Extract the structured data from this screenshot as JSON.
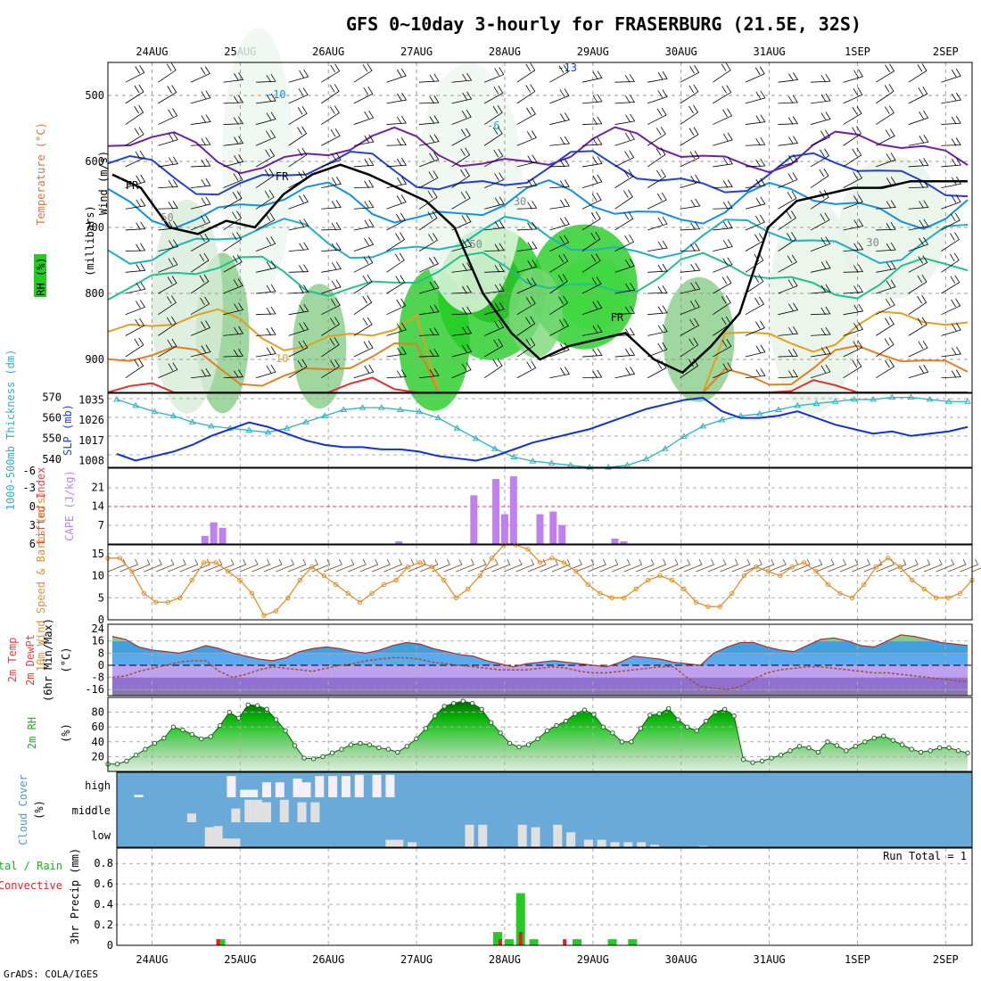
{
  "title": "GFS 0~10day 3-hourly for FRASERBURG (21.5E, 32S)",
  "credit": "GrADS: COLA/IGES",
  "colors": {
    "temp_line": "#2040c0",
    "rh_green": "#22cc22",
    "cape": "#c080f0",
    "lifted": "#e04040",
    "wind10": "#e09030",
    "barb": "#704020",
    "slp": "#1030d0",
    "thickness": "#30b0c0",
    "cloud_bg": "#6aaad8",
    "cloud_fill": "#e0e0e0",
    "precip_total": "#22cc22",
    "precip_conv": "#e02020"
  },
  "chart_data": [
    {
      "type": "contour",
      "name": "upper-air",
      "ylabel_parts": [
        "RH (%)",
        "Temperature (°C)",
        "Wind (m/s)"
      ],
      "yaxis_label": "(millibars)",
      "yticks": [
        "500",
        "600",
        "700",
        "800",
        "900"
      ],
      "ylim": [
        450,
        950
      ],
      "date_labels": [
        "24AUG",
        "25AUG",
        "26AUG",
        "27AUG",
        "28AUG",
        "29AUG",
        "30AUG",
        "31AUG",
        "1SEP",
        "2SEP"
      ],
      "contour_labels": [
        "-13",
        "-10",
        "-6",
        "FR",
        "FR",
        "FR",
        "50",
        "50",
        "30",
        "10",
        "30"
      ],
      "freezing_level_mb": [
        620,
        640,
        700,
        710,
        690,
        700,
        650,
        620,
        605,
        620,
        640,
        660,
        700,
        800,
        860,
        900,
        880,
        870,
        860,
        900,
        920,
        880,
        830,
        700,
        660,
        650,
        640,
        640,
        630,
        630,
        630
      ]
    },
    {
      "type": "line",
      "name": "thickness-slp",
      "ylabel_left": "1000-500mb Thickness (dm)",
      "ylabel_right": "SLP (mb)",
      "left_ticks": [
        "570",
        "560",
        "550",
        "540"
      ],
      "right_ticks": [
        "1035",
        "1026",
        "1017",
        "1008"
      ],
      "thickness_range": [
        536,
        572
      ],
      "slp_range": [
        1005,
        1038
      ],
      "thickness_dm": [
        569,
        566,
        563,
        561,
        558,
        556,
        555,
        554,
        553,
        555,
        558,
        561,
        564,
        565,
        565,
        564,
        563,
        560,
        555,
        550,
        545,
        541,
        539,
        538,
        537,
        536,
        536,
        537,
        540,
        545,
        551,
        556,
        559,
        561,
        562,
        564,
        566,
        567,
        568,
        569,
        569,
        570,
        570,
        569,
        568,
        568
      ],
      "slp_mb": [
        1011,
        1008,
        1010,
        1012,
        1015,
        1019,
        1022,
        1025,
        1023,
        1020,
        1017,
        1015,
        1014,
        1014,
        1013,
        1013,
        1012,
        1010,
        1009,
        1008,
        1010,
        1013,
        1016,
        1018,
        1020,
        1022,
        1025,
        1028,
        1031,
        1033,
        1035,
        1036,
        1030,
        1027,
        1027,
        1028,
        1030,
        1027,
        1024,
        1022,
        1020,
        1021,
        1019,
        1020,
        1021,
        1023
      ]
    },
    {
      "type": "bar",
      "name": "cape-li",
      "ylabel_left": "Lifted Index",
      "ylabel_right": "CAPE (J/kg)",
      "li_ticks": [
        "-6",
        "-3",
        "0",
        "3",
        "6"
      ],
      "cape_ticks": [
        "21",
        "14",
        "7"
      ],
      "cape_max": 28,
      "cape_bars": [
        [
          24.6,
          3
        ],
        [
          24.7,
          8
        ],
        [
          24.8,
          6
        ],
        [
          26.8,
          1
        ],
        [
          27.65,
          18
        ],
        [
          27.9,
          24
        ],
        [
          28.0,
          11
        ],
        [
          28.1,
          25
        ],
        [
          28.4,
          11
        ],
        [
          28.55,
          12
        ],
        [
          28.65,
          7
        ],
        [
          29.25,
          2
        ],
        [
          29.35,
          1
        ]
      ]
    },
    {
      "type": "line",
      "name": "wind10",
      "ylabel": "10m Wind Speed & Barbs (m/s)",
      "yticks": [
        "15",
        "10",
        "5",
        "0"
      ],
      "ylim": [
        0,
        17
      ],
      "speed_ms": [
        14,
        14,
        11,
        6,
        4,
        4,
        5,
        9,
        13,
        13,
        11,
        9,
        6,
        1,
        2,
        5,
        9,
        12,
        10,
        8,
        6,
        4,
        6,
        8,
        9,
        12,
        13,
        12,
        9,
        5,
        7,
        10,
        14,
        17,
        17,
        16,
        13,
        14,
        13,
        11,
        8,
        6,
        5,
        5,
        7,
        9,
        10,
        9,
        7,
        4,
        3,
        3,
        6,
        10,
        12,
        11,
        10,
        12,
        13,
        11,
        8,
        6,
        5,
        8,
        12,
        14,
        12,
        9,
        7,
        5,
        5,
        6,
        9
      ]
    },
    {
      "type": "area",
      "name": "temp-dew",
      "ylabel": "2m Temp 2m DewPt (6hr Min/Max) (°C)",
      "yticks": [
        "24",
        "16",
        "8",
        "0",
        "-8",
        "-16"
      ],
      "ylim": [
        -20,
        27
      ],
      "temp_c": [
        19,
        17,
        12,
        10,
        9,
        8,
        10,
        13,
        11,
        8,
        6,
        4,
        3,
        5,
        9,
        11,
        12,
        11,
        9,
        8,
        10,
        13,
        15,
        14,
        11,
        9,
        7,
        6,
        3,
        1,
        -1,
        1,
        2,
        3,
        2,
        1,
        0,
        -1,
        2,
        6,
        5,
        4,
        2,
        1,
        0,
        8,
        12,
        15,
        15,
        12,
        10,
        9,
        13,
        17,
        18,
        16,
        13,
        12,
        16,
        20,
        19,
        17,
        15,
        14,
        13
      ],
      "dew_c": [
        -8,
        -7,
        -4,
        -2,
        0,
        2,
        3,
        3,
        -4,
        -8,
        -6,
        -3,
        -1,
        -2,
        -3,
        -4,
        -2,
        0,
        1,
        3,
        4,
        5,
        5,
        4,
        2,
        1,
        0,
        -1,
        -2,
        -3,
        -3,
        -3,
        -2,
        -1,
        -2,
        -4,
        -5,
        -5,
        -4,
        -3,
        -2,
        -1,
        -1,
        -8,
        -14,
        -15,
        -16,
        -14,
        -9,
        -5,
        -3,
        -2,
        -1,
        -1,
        -2,
        -3,
        -4,
        -5,
        -5,
        -6,
        -7,
        -8,
        -9,
        -10,
        -11
      ]
    },
    {
      "type": "area",
      "name": "rh2m",
      "ylabel": "2m RH (%)",
      "yticks": [
        "80",
        "60",
        "40",
        "20"
      ],
      "ylim": [
        0,
        100
      ],
      "rh_pct": [
        10,
        10,
        14,
        22,
        30,
        38,
        45,
        60,
        56,
        50,
        44,
        47,
        62,
        80,
        72,
        90,
        89,
        84,
        70,
        55,
        35,
        18,
        17,
        20,
        25,
        30,
        36,
        38,
        36,
        32,
        30,
        26,
        34,
        44,
        58,
        75,
        88,
        92,
        95,
        92,
        84,
        66,
        52,
        38,
        33,
        36,
        44,
        55,
        62,
        68,
        78,
        83,
        77,
        60,
        52,
        40,
        40,
        58,
        76,
        78,
        85,
        70,
        60,
        55,
        68,
        80,
        84,
        75,
        16,
        12,
        14,
        18,
        22,
        28,
        34,
        32,
        26,
        40,
        35,
        28,
        34,
        40,
        45,
        48,
        42,
        36,
        30,
        26,
        28,
        32,
        32,
        28,
        25
      ]
    },
    {
      "type": "bar",
      "name": "cloud",
      "ylabel": "Cloud Cover (%)",
      "levels": [
        "high",
        "middle",
        "low"
      ],
      "high_bars": [
        [
          23.85,
          0.1
        ],
        [
          24.9,
          0.85
        ],
        [
          25.05,
          0.3
        ],
        [
          25.15,
          0.3
        ],
        [
          25.3,
          0.6
        ],
        [
          25.45,
          0.6
        ],
        [
          25.65,
          0.75
        ],
        [
          25.75,
          0.6
        ],
        [
          25.9,
          0.85
        ],
        [
          26.05,
          0.85
        ],
        [
          26.2,
          0.85
        ],
        [
          26.35,
          0.9
        ],
        [
          26.55,
          0.9
        ],
        [
          26.7,
          0.9
        ]
      ],
      "mid_bars": [
        [
          24.45,
          0.35
        ],
        [
          24.95,
          0.55
        ],
        [
          25.1,
          0.9
        ],
        [
          25.2,
          0.9
        ],
        [
          25.3,
          0.8
        ],
        [
          25.5,
          0.9
        ],
        [
          25.7,
          0.8
        ],
        [
          25.85,
          0.8
        ]
      ],
      "low_bars": [
        [
          24.65,
          0.8
        ],
        [
          24.75,
          0.85
        ],
        [
          24.85,
          0.35
        ],
        [
          24.95,
          0.35
        ],
        [
          26.7,
          0.3
        ],
        [
          26.8,
          0.3
        ],
        [
          26.95,
          0.2
        ],
        [
          27.6,
          0.9
        ],
        [
          27.75,
          0.9
        ],
        [
          28.2,
          0.9
        ],
        [
          28.35,
          0.8
        ],
        [
          28.6,
          0.9
        ],
        [
          28.75,
          0.6
        ],
        [
          28.95,
          0.3
        ],
        [
          29.1,
          0.3
        ],
        [
          29.25,
          0.2
        ],
        [
          29.4,
          0.2
        ],
        [
          29.55,
          0.2
        ],
        [
          29.7,
          0.1
        ],
        [
          30.25,
          0.05
        ]
      ]
    },
    {
      "type": "bar",
      "name": "precip",
      "ylabel": "3hr Precip (mm)",
      "legend_total": "Total / Rain",
      "legend_conv": "Convective",
      "run_total": "Run Total = 1",
      "yticks": [
        "0.8",
        "0.6",
        "0.4",
        "0.2",
        "0"
      ],
      "ylim": [
        0,
        0.95
      ],
      "total_bars": [
        [
          24.78,
          0.06
        ],
        [
          27.92,
          0.13
        ],
        [
          28.05,
          0.06
        ],
        [
          28.18,
          0.51
        ],
        [
          28.33,
          0.06
        ],
        [
          28.82,
          0.06
        ],
        [
          29.22,
          0.06
        ],
        [
          29.45,
          0.06
        ]
      ],
      "conv_bars": [
        [
          24.75,
          0.06
        ],
        [
          27.95,
          0.06
        ],
        [
          28.18,
          0.13
        ],
        [
          28.68,
          0.06
        ]
      ]
    }
  ]
}
